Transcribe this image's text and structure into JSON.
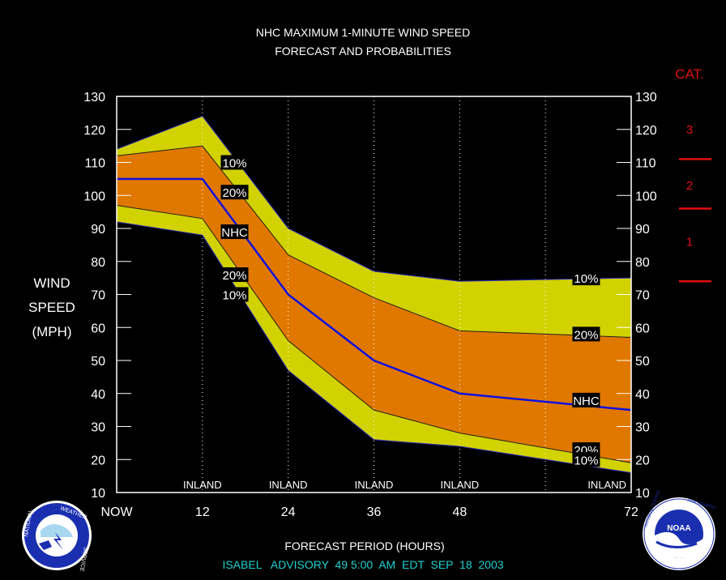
{
  "title_line1": "NHC MAXIMUM 1-MINUTE WIND SPEED",
  "title_line2": "FORECAST AND PROBABILITIES",
  "ylabel_lines": [
    "WIND",
    "SPEED",
    "(MPH)"
  ],
  "xlabel": "FORECAST PERIOD (HOURS)",
  "advisory": "ISABEL   ADVISORY  49 5:00  AM  EDT  SEP  18  2003",
  "cat_header": "CAT.",
  "categories": [
    {
      "label": "3",
      "y": 120
    },
    {
      "label": "2",
      "y": 103
    },
    {
      "label": "1",
      "y": 86
    }
  ],
  "category_thresholds": [
    111,
    96,
    74
  ],
  "colors": {
    "outer_band": "#d2d200",
    "inner_band": "#e07800",
    "nhc_line": "#1010e0",
    "category": "#e01010",
    "advisory": "#20d0d0"
  },
  "chart_data": {
    "type": "area",
    "x_tick_labels": [
      "NOW",
      "12",
      "24",
      "36",
      "48",
      "72"
    ],
    "x_ticks": [
      0,
      12,
      24,
      36,
      48,
      72
    ],
    "xlim": [
      0,
      72
    ],
    "ylim": [
      10,
      130
    ],
    "y_ticks": [
      10,
      20,
      30,
      40,
      50,
      60,
      70,
      80,
      90,
      100,
      110,
      120,
      130
    ],
    "x": [
      0,
      12,
      24,
      36,
      48,
      72
    ],
    "nhc": [
      105,
      105,
      70,
      50,
      40,
      35
    ],
    "upper10": [
      114,
      124,
      90,
      77,
      74,
      75
    ],
    "upper20": [
      112,
      115,
      82,
      69,
      59,
      57
    ],
    "lower20": [
      97,
      93,
      56,
      35,
      28,
      19
    ],
    "lower10": [
      92,
      88,
      47,
      26,
      24,
      16
    ],
    "inland_label": "INLAND",
    "inland_hours": [
      12,
      24,
      36,
      48,
      72
    ],
    "dotted_gridlines_x": [
      12,
      24,
      36,
      48,
      60
    ],
    "annotations": [
      {
        "text": "10%",
        "x": 16.5,
        "y": 110
      },
      {
        "text": "20%",
        "x": 16.5,
        "y": 101
      },
      {
        "text": "NHC",
        "x": 16.5,
        "y": 89
      },
      {
        "text": "20%",
        "x": 16.5,
        "y": 76
      },
      {
        "text": "10%",
        "x": 16.5,
        "y": 70
      },
      {
        "text": "10%",
        "x": 65.7,
        "y": 75
      },
      {
        "text": "20%",
        "x": 65.7,
        "y": 58
      },
      {
        "text": "NHC",
        "x": 65.7,
        "y": 38
      },
      {
        "text": "20%",
        "x": 65.7,
        "y": 23
      },
      {
        "text": "10%",
        "x": 65.7,
        "y": 20
      }
    ]
  },
  "logos": {
    "nws": "NATIONAL WEATHER SERVICE",
    "noaa": "NOAA"
  }
}
